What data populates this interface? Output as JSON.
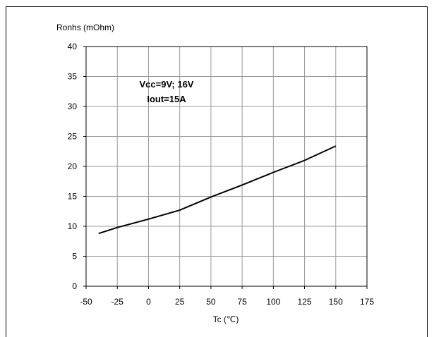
{
  "chart_data": {
    "type": "line",
    "ylabel": "Ronhs (mOhm)",
    "xlabel": "Tc (℃)",
    "xlim": [
      -50,
      175
    ],
    "ylim": [
      0,
      40
    ],
    "x_ticks": [
      -50,
      -25,
      0,
      25,
      50,
      75,
      100,
      125,
      150,
      175
    ],
    "y_ticks": [
      0,
      5,
      10,
      15,
      20,
      25,
      30,
      35,
      40
    ],
    "grid": true,
    "annotations": [
      "Vcc=9V; 16V",
      "Iout=15A"
    ],
    "series": [
      {
        "color": "#000000",
        "x": [
          -40,
          -25,
          0,
          25,
          50,
          75,
          100,
          125,
          150
        ],
        "y": [
          8.8,
          9.8,
          11.2,
          12.7,
          14.9,
          16.9,
          19.0,
          21.0,
          23.4
        ]
      }
    ]
  }
}
